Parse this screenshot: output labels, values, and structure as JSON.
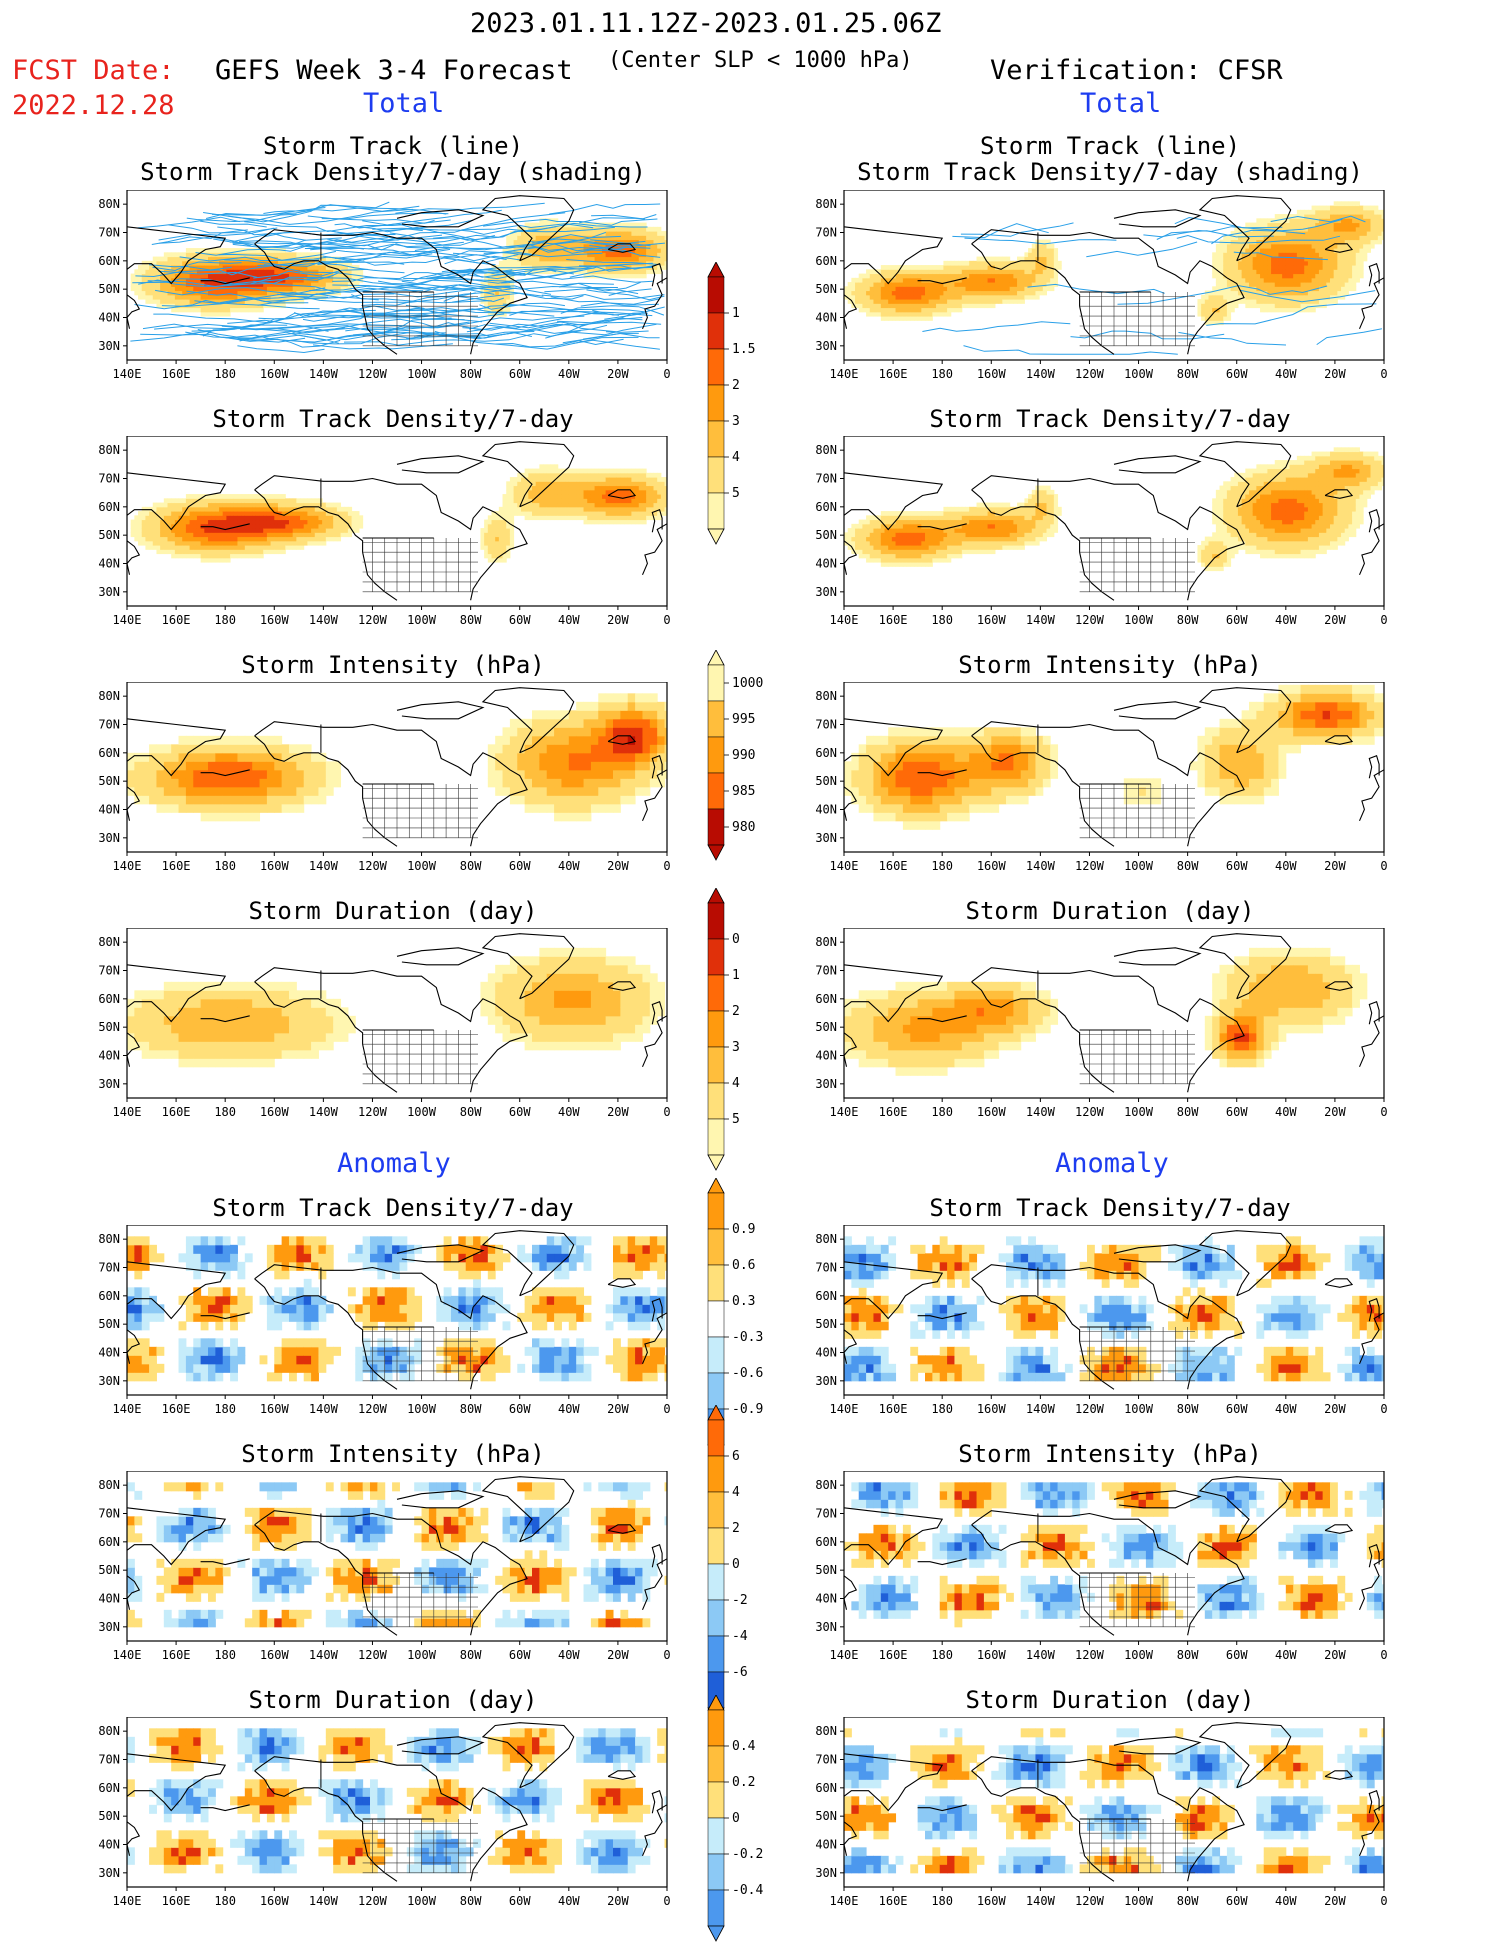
{
  "header": {
    "date_range": "2023.01.11.12Z-2023.01.25.06Z",
    "criterion": "(Center SLP < 1000 hPa)",
    "fcst_label": "FCST Date:",
    "fcst_date": "2022.12.28",
    "left_title": "GEFS Week 3-4 Forecast",
    "right_title": "Verification: CFSR"
  },
  "sections": {
    "total": "Total",
    "anomaly": "Anomaly"
  },
  "panel_titles": {
    "track_line": "Storm Track (line)",
    "track_shading": "Storm Track Density/7-day (shading)",
    "density": "Storm Track Density/7-day",
    "intensity": "Storm Intensity (hPa)",
    "duration": "Storm Duration (day)"
  },
  "axes": {
    "lat_labels": [
      "80N",
      "70N",
      "60N",
      "50N",
      "40N",
      "30N"
    ],
    "lon_labels": [
      "140E",
      "160E",
      "180",
      "160W",
      "140W",
      "120W",
      "100W",
      "80W",
      "60W",
      "40W",
      "20W",
      "0"
    ]
  },
  "colorbars": {
    "total_density": [
      "1",
      "1.5",
      "2",
      "3",
      "4",
      "5"
    ],
    "total_intensity": [
      "1000",
      "995",
      "990",
      "985",
      "980"
    ],
    "total_duration": [
      "0",
      "1",
      "2",
      "3",
      "4",
      "5"
    ],
    "anom_density": [
      "0.9",
      "0.6",
      "0.3",
      "-0.3",
      "-0.6",
      "-0.9"
    ],
    "anom_intensity": [
      "6",
      "4",
      "2",
      "0",
      "-2",
      "-4",
      "-6"
    ],
    "anom_duration": [
      "0.4",
      "0.2",
      "0",
      "-0.2",
      "-0.4"
    ]
  },
  "colors": {
    "warm": [
      "#fff6b0",
      "#ffe07a",
      "#ffbe3c",
      "#ff9a0e",
      "#ff6a08",
      "#e0300a",
      "#b80c02"
    ],
    "cool": [
      "#c6ecfa",
      "#8cc9f5",
      "#4c98ee",
      "#1f5fd8"
    ],
    "track": "#2aa0e8"
  }
}
